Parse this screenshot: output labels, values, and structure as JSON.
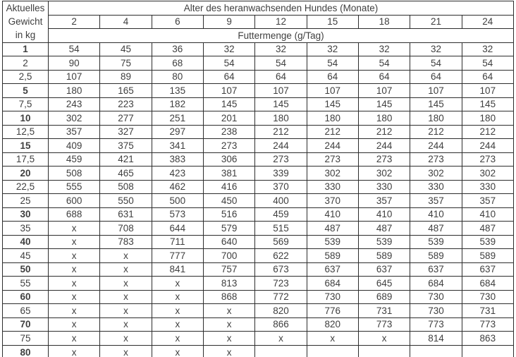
{
  "header": {
    "weight_label_lines": [
      "Aktuelles",
      "Gewicht",
      "in kg"
    ],
    "age_title": "Alter des heranwachsenden Hundes (Monate)",
    "months": [
      "2",
      "4",
      "6",
      "9",
      "12",
      "15",
      "18",
      "21",
      "24"
    ],
    "amount_title": "Futtermenge (g/Tag)"
  },
  "colors": {
    "lp": "#F2DBDA",
    "mp": "#DFACAB",
    "dr": "#CB8584",
    "bl": "#C4D7EE",
    "border": "#2d2d2d",
    "text": "#3f3f3f",
    "bottom_shadow": "#8f8f8f"
  },
  "missing_marker": "x",
  "rows": [
    {
      "weight": "1",
      "bold": true,
      "cells": [
        [
          "54",
          "lp"
        ],
        [
          "45",
          "lp"
        ],
        [
          "36",
          "lp"
        ],
        [
          "32",
          "lp"
        ],
        [
          "32",
          "mp"
        ],
        [
          "32",
          "dr"
        ],
        [
          "32",
          "dr"
        ],
        [
          "32",
          "bl"
        ],
        [
          "32",
          "bl"
        ]
      ]
    },
    {
      "weight": "2",
      "bold": false,
      "cells": [
        [
          "90",
          "lp"
        ],
        [
          "75",
          "lp"
        ],
        [
          "68",
          "lp"
        ],
        [
          "54",
          "lp"
        ],
        [
          "54",
          "mp"
        ],
        [
          "54",
          "dr"
        ],
        [
          "54",
          "dr"
        ],
        [
          "54",
          "bl"
        ],
        [
          "54",
          "bl"
        ]
      ]
    },
    {
      "weight": "2,5",
      "bold": false,
      "cells": [
        [
          "107",
          "lp"
        ],
        [
          "89",
          "lp"
        ],
        [
          "80",
          "lp"
        ],
        [
          "64",
          "lp"
        ],
        [
          "64",
          "mp"
        ],
        [
          "64",
          "dr"
        ],
        [
          "64",
          "dr"
        ],
        [
          "64",
          "bl"
        ],
        [
          "64",
          "bl"
        ]
      ]
    },
    {
      "weight": "5",
      "bold": true,
      "cells": [
        [
          "180",
          "lp"
        ],
        [
          "165",
          "lp"
        ],
        [
          "135",
          "lp"
        ],
        [
          "107",
          "lp"
        ],
        [
          "107",
          "mp"
        ],
        [
          "107",
          "dr"
        ],
        [
          "107",
          "dr"
        ],
        [
          "107",
          "bl"
        ],
        [
          "107",
          "bl"
        ]
      ]
    },
    {
      "weight": "7,5",
      "bold": false,
      "cells": [
        [
          "243",
          "mp"
        ],
        [
          "223",
          "mp"
        ],
        [
          "182",
          "mp"
        ],
        [
          "145",
          "mp"
        ],
        [
          "145",
          "mp"
        ],
        [
          "145",
          "dr"
        ],
        [
          "145",
          "dr"
        ],
        [
          "145",
          "bl"
        ],
        [
          "145",
          "bl"
        ]
      ]
    },
    {
      "weight": "10",
      "bold": true,
      "cells": [
        [
          "302",
          "mp"
        ],
        [
          "277",
          "mp"
        ],
        [
          "251",
          "mp"
        ],
        [
          "201",
          "mp"
        ],
        [
          "180",
          "mp"
        ],
        [
          "180",
          "dr"
        ],
        [
          "180",
          "dr"
        ],
        [
          "180",
          "bl"
        ],
        [
          "180",
          "bl"
        ]
      ]
    },
    {
      "weight": "12,5",
      "bold": false,
      "cells": [
        [
          "357",
          "mp"
        ],
        [
          "327",
          "mp"
        ],
        [
          "297",
          "mp"
        ],
        [
          "238",
          "mp"
        ],
        [
          "212",
          "mp"
        ],
        [
          "212",
          "dr"
        ],
        [
          "212",
          "dr"
        ],
        [
          "212",
          "bl"
        ],
        [
          "212",
          "bl"
        ]
      ]
    },
    {
      "weight": "15",
      "bold": true,
      "cells": [
        [
          "409",
          "mp"
        ],
        [
          "375",
          "mp"
        ],
        [
          "341",
          "mp"
        ],
        [
          "273",
          "mp"
        ],
        [
          "244",
          "mp"
        ],
        [
          "244",
          "dr"
        ],
        [
          "244",
          "dr"
        ],
        [
          "244",
          "bl"
        ],
        [
          "244",
          "bl"
        ]
      ]
    },
    {
      "weight": "17,5",
      "bold": false,
      "cells": [
        [
          "459",
          "mp"
        ],
        [
          "421",
          "mp"
        ],
        [
          "383",
          "mp"
        ],
        [
          "306",
          "mp"
        ],
        [
          "273",
          "mp"
        ],
        [
          "273",
          "dr"
        ],
        [
          "273",
          "dr"
        ],
        [
          "273",
          "bl"
        ],
        [
          "273",
          "bl"
        ]
      ]
    },
    {
      "weight": "20",
      "bold": true,
      "cells": [
        [
          "508",
          "mp"
        ],
        [
          "465",
          "mp"
        ],
        [
          "423",
          "mp"
        ],
        [
          "381",
          "mp"
        ],
        [
          "339",
          "mp"
        ],
        [
          "302",
          "dr"
        ],
        [
          "302",
          "dr"
        ],
        [
          "302",
          "bl"
        ],
        [
          "302",
          "bl"
        ]
      ]
    },
    {
      "weight": "22,5",
      "bold": false,
      "cells": [
        [
          "555",
          "mp"
        ],
        [
          "508",
          "mp"
        ],
        [
          "462",
          "mp"
        ],
        [
          "416",
          "mp"
        ],
        [
          "370",
          "lp"
        ],
        [
          "330",
          "dr"
        ],
        [
          "330",
          "dr"
        ],
        [
          "330",
          "bl"
        ],
        [
          "330",
          "bl"
        ]
      ]
    },
    {
      "weight": "25",
      "bold": false,
      "cells": [
        [
          "600",
          "dr"
        ],
        [
          "550",
          "dr"
        ],
        [
          "500",
          "dr"
        ],
        [
          "450",
          "dr"
        ],
        [
          "400",
          "dr"
        ],
        [
          "370",
          "dr"
        ],
        [
          "357",
          "dr"
        ],
        [
          "357",
          "bl"
        ],
        [
          "357",
          "bl"
        ]
      ]
    },
    {
      "weight": "30",
      "bold": true,
      "cells": [
        [
          "688",
          "dr"
        ],
        [
          "631",
          "dr"
        ],
        [
          "573",
          "dr"
        ],
        [
          "516",
          "dr"
        ],
        [
          "459",
          "dr"
        ],
        [
          "410",
          "dr"
        ],
        [
          "410",
          "dr"
        ],
        [
          "410",
          "bl"
        ],
        [
          "410",
          "bl"
        ]
      ]
    },
    {
      "weight": "35",
      "bold": false,
      "cells": [
        [
          "x",
          "dr"
        ],
        [
          "708",
          "dr"
        ],
        [
          "644",
          "dr"
        ],
        [
          "579",
          "dr"
        ],
        [
          "515",
          "dr"
        ],
        [
          "487",
          "dr"
        ],
        [
          "487",
          "dr"
        ],
        [
          "487",
          "bl"
        ],
        [
          "487",
          "bl"
        ]
      ]
    },
    {
      "weight": "40",
      "bold": true,
      "cells": [
        [
          "x",
          "dr"
        ],
        [
          "783",
          "dr"
        ],
        [
          "711",
          "dr"
        ],
        [
          "640",
          "dr"
        ],
        [
          "569",
          "dr"
        ],
        [
          "539",
          "dr"
        ],
        [
          "539",
          "dr"
        ],
        [
          "539",
          "bl"
        ],
        [
          "539",
          "bl"
        ]
      ]
    },
    {
      "weight": "45",
      "bold": false,
      "cells": [
        [
          "x",
          "bl"
        ],
        [
          "x",
          "bl"
        ],
        [
          "777",
          "bl"
        ],
        [
          "700",
          "bl"
        ],
        [
          "622",
          "bl"
        ],
        [
          "589",
          "bl"
        ],
        [
          "589",
          "bl"
        ],
        [
          "589",
          "bl"
        ],
        [
          "589",
          "bl"
        ]
      ]
    },
    {
      "weight": "50",
      "bold": true,
      "cells": [
        [
          "x",
          "bl"
        ],
        [
          "x",
          "bl"
        ],
        [
          "841",
          "bl"
        ],
        [
          "757",
          "bl"
        ],
        [
          "673",
          "bl"
        ],
        [
          "637",
          "bl"
        ],
        [
          "637",
          "bl"
        ],
        [
          "637",
          "bl"
        ],
        [
          "637",
          "bl"
        ]
      ]
    },
    {
      "weight": "55",
      "bold": false,
      "cells": [
        [
          "x",
          "bl"
        ],
        [
          "x",
          "bl"
        ],
        [
          "x",
          "bl"
        ],
        [
          "813",
          "bl"
        ],
        [
          "723",
          "bl"
        ],
        [
          "684",
          "bl"
        ],
        [
          "645",
          "bl"
        ],
        [
          "684",
          "bl"
        ],
        [
          "684",
          "bl"
        ]
      ]
    },
    {
      "weight": "60",
      "bold": true,
      "cells": [
        [
          "x",
          "bl"
        ],
        [
          "x",
          "bl"
        ],
        [
          "x",
          "bl"
        ],
        [
          "868",
          "bl"
        ],
        [
          "772",
          "bl"
        ],
        [
          "730",
          "bl"
        ],
        [
          "689",
          "bl"
        ],
        [
          "730",
          "bl"
        ],
        [
          "730",
          "bl"
        ]
      ]
    },
    {
      "weight": "65",
      "bold": false,
      "cells": [
        [
          "x",
          "bl"
        ],
        [
          "x",
          "bl"
        ],
        [
          "x",
          "bl"
        ],
        [
          "x",
          "bl"
        ],
        [
          "820",
          "bl"
        ],
        [
          "776",
          "bl"
        ],
        [
          "731",
          "bl"
        ],
        [
          "730",
          "bl"
        ],
        [
          "731",
          "bl"
        ]
      ]
    },
    {
      "weight": "70",
      "bold": true,
      "cells": [
        [
          "x",
          "bl"
        ],
        [
          "x",
          "bl"
        ],
        [
          "x",
          "bl"
        ],
        [
          "x",
          "bl"
        ],
        [
          "866",
          "bl"
        ],
        [
          "820",
          "bl"
        ],
        [
          "773",
          "bl"
        ],
        [
          "773",
          "bl"
        ],
        [
          "773",
          "bl"
        ]
      ]
    },
    {
      "weight": "75",
      "bold": false,
      "cells": [
        [
          "x",
          "bl"
        ],
        [
          "x",
          "bl"
        ],
        [
          "x",
          "bl"
        ],
        [
          "x",
          "bl"
        ],
        [
          "x",
          "bl"
        ],
        [
          "x",
          "bl"
        ],
        [
          "x",
          "bl"
        ],
        [
          "814",
          "bl"
        ],
        [
          "863",
          "bl"
        ]
      ]
    },
    {
      "weight": "80",
      "bold": true,
      "cells": [
        [
          "x",
          "bl"
        ],
        [
          "x",
          "bl"
        ],
        [
          "x",
          "bl"
        ],
        [
          "x",
          "bl"
        ],
        [
          "",
          "bl"
        ],
        [
          "",
          "none"
        ],
        [
          "",
          "none"
        ],
        [
          "",
          "none"
        ],
        [
          "",
          "none"
        ]
      ]
    }
  ]
}
